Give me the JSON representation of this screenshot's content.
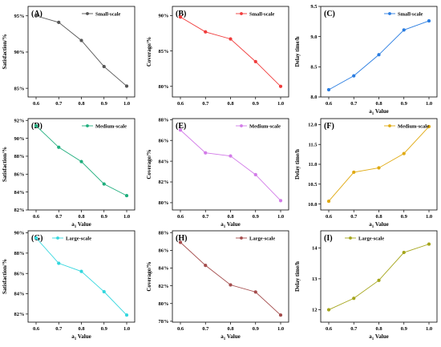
{
  "chart_data": [
    {
      "type": "line",
      "label": "(A)",
      "x": [
        0.6,
        0.7,
        0.8,
        0.9,
        1.0
      ],
      "xticks": [
        "0.6",
        "0.7",
        "0.8",
        "0.9",
        "1.0"
      ],
      "series": [
        {
          "name": "Small-scale",
          "values": [
            95.0,
            94.1,
            91.6,
            88.0,
            85.3
          ],
          "color": "#555555"
        }
      ],
      "ylabel": "Satisfaction/%",
      "xlabel": "",
      "ylim": [
        83.8,
        96.3
      ],
      "yticks": [
        85,
        90,
        95
      ],
      "yticklabels": [
        "85%",
        "90%",
        "95%"
      ],
      "legend": "top-right"
    },
    {
      "type": "line",
      "label": "(B)",
      "x": [
        0.6,
        0.7,
        0.8,
        0.9,
        1.0
      ],
      "xticks": [
        "0.6",
        "0.7",
        "0.8",
        "0.9",
        "1.0"
      ],
      "series": [
        {
          "name": "Small-scale",
          "values": [
            89.8,
            87.7,
            86.7,
            83.5,
            80.0
          ],
          "color": "#f03c3c"
        }
      ],
      "ylabel": "Coverage/%",
      "xlabel": "",
      "ylim": [
        78.5,
        91.3
      ],
      "yticks": [
        80,
        85,
        90
      ],
      "yticklabels": [
        "80%",
        "85%",
        "90%"
      ],
      "legend": "top-right"
    },
    {
      "type": "line",
      "label": "(C)",
      "x": [
        0.6,
        0.7,
        0.8,
        0.9,
        1.0
      ],
      "xticks": [
        "0.6",
        "0.7",
        "0.8",
        "0.9",
        "1.0"
      ],
      "series": [
        {
          "name": "Small-scale",
          "values": [
            8.12,
            8.35,
            8.7,
            9.11,
            9.26
          ],
          "color": "#2a7de1"
        }
      ],
      "ylabel": "Delay time/h",
      "xlabel": "a₁ Value",
      "ylim": [
        8.0,
        9.5
      ],
      "yticks": [
        8.0,
        8.5,
        9.0,
        9.5
      ],
      "yticklabels": [
        "8.0",
        "8.5",
        "9.0",
        "9.5"
      ],
      "legend": "top-right"
    },
    {
      "type": "line",
      "label": "(D)",
      "x": [
        0.6,
        0.7,
        0.8,
        0.9,
        1.0
      ],
      "xticks": [
        "0.6",
        "0.7",
        "0.8",
        "0.9",
        "1.0"
      ],
      "series": [
        {
          "name": "Medium-scale",
          "values": [
            91.4,
            89.0,
            87.4,
            84.9,
            83.6
          ],
          "color": "#1fae7d"
        }
      ],
      "ylabel": "Satisfaction/%",
      "xlabel": "a₁ Value",
      "ylim": [
        82.0,
        92.2
      ],
      "yticks": [
        82,
        84,
        86,
        88,
        90,
        92
      ],
      "yticklabels": [
        "82%",
        "84%",
        "86%",
        "88%",
        "90%",
        "92%"
      ],
      "legend": "top-right"
    },
    {
      "type": "line",
      "label": "(E)",
      "x": [
        0.6,
        0.7,
        0.8,
        0.9,
        1.0
      ],
      "xticks": [
        "0.6",
        "0.7",
        "0.8",
        "0.9",
        "1.0"
      ],
      "series": [
        {
          "name": "Medium-scale",
          "values": [
            87.0,
            84.8,
            84.5,
            82.7,
            80.2
          ],
          "color": "#d27be8"
        }
      ],
      "ylabel": "Coverage/%",
      "xlabel": "a₁ Value",
      "ylim": [
        79.3,
        88.1
      ],
      "yticks": [
        80,
        82,
        84,
        86,
        88
      ],
      "yticklabels": [
        "80%",
        "82%",
        "84%",
        "86%",
        "88%"
      ],
      "legend": "top-right"
    },
    {
      "type": "line",
      "label": "(F)",
      "x": [
        0.6,
        0.7,
        0.8,
        0.9,
        1.0
      ],
      "xticks": [
        "0.6",
        "0.7",
        "0.8",
        "0.9",
        "1.0"
      ],
      "series": [
        {
          "name": "Medium-scale",
          "values": [
            10.07,
            10.8,
            10.91,
            11.27,
            11.95
          ],
          "color": "#e0aa12"
        }
      ],
      "ylabel": "Delay time/h",
      "xlabel": "a₁ Value",
      "ylim": [
        9.85,
        12.15
      ],
      "yticks": [
        10.0,
        10.5,
        11.0,
        11.5,
        12.0
      ],
      "yticklabels": [
        "10.0",
        "10.5",
        "11.0",
        "11.5",
        "12.0"
      ],
      "legend": "top-right"
    },
    {
      "type": "line",
      "label": "(G)",
      "x": [
        0.6,
        0.7,
        0.8,
        0.9,
        1.0
      ],
      "xticks": [
        "0.6",
        "0.7",
        "0.8",
        "0.9",
        "1.0"
      ],
      "series": [
        {
          "name": "Large-scale",
          "values": [
            89.5,
            87.0,
            86.2,
            84.2,
            81.9
          ],
          "color": "#33d7de"
        }
      ],
      "ylabel": "Satisfaction/%",
      "xlabel": "a₁ Value",
      "ylim": [
        81.2,
        90.2
      ],
      "yticks": [
        82,
        84,
        86,
        88,
        90
      ],
      "yticklabels": [
        "82%",
        "84%",
        "86%",
        "88%",
        "90%"
      ],
      "legend": "top-left"
    },
    {
      "type": "line",
      "label": "(H)",
      "x": [
        0.6,
        0.7,
        0.8,
        0.9,
        1.0
      ],
      "xticks": [
        "0.6",
        "0.7",
        "0.8",
        "0.9",
        "1.0"
      ],
      "series": [
        {
          "name": "Large-scale",
          "values": [
            86.9,
            84.3,
            82.1,
            81.3,
            78.7
          ],
          "color": "#a44c4c"
        }
      ],
      "ylabel": "Coverage/%",
      "xlabel": "a₁ Value",
      "ylim": [
        77.9,
        88.2
      ],
      "yticks": [
        78,
        80,
        82,
        84,
        86,
        88
      ],
      "yticklabels": [
        "78%",
        "80%",
        "82%",
        "84%",
        "86%",
        "88%"
      ],
      "legend": "top-right"
    },
    {
      "type": "line",
      "label": "(I)",
      "x": [
        0.6,
        0.7,
        0.8,
        0.9,
        1.0
      ],
      "xticks": [
        "0.6",
        "0.7",
        "0.8",
        "0.9",
        "1.0"
      ],
      "series": [
        {
          "name": "Large-scale",
          "values": [
            12.0,
            12.37,
            12.95,
            13.85,
            14.12
          ],
          "color": "#a5a51b"
        }
      ],
      "ylabel": "Delay time/h",
      "xlabel": "a₁ Value",
      "ylim": [
        11.6,
        14.55
      ],
      "yticks": [
        12,
        13,
        14
      ],
      "yticklabels": [
        "12",
        "13",
        "14"
      ],
      "legend": "top-left"
    }
  ]
}
